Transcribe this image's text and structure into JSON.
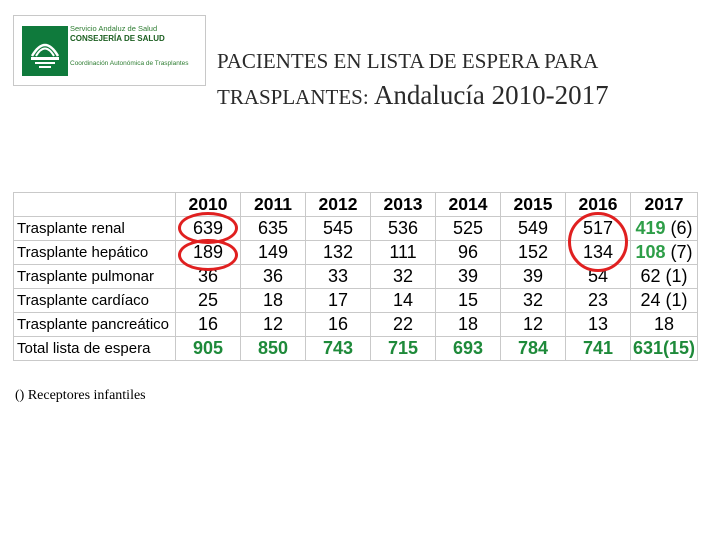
{
  "logo": {
    "line1": "Servicio Andaluz de Salud",
    "line2": "CONSEJERÍA DE SALUD",
    "line3": "Coordinación Autonómica de Trasplantes"
  },
  "title": {
    "line1": "PACIENTES EN LISTA DE ESPERA  PARA",
    "line2_small": "TRASPLANTES:",
    "line2_big": "Andalucía 2010-2017"
  },
  "table": {
    "years": [
      "2010",
      "2011",
      "2012",
      "2013",
      "2014",
      "2015",
      "2016",
      "2017"
    ],
    "rows": [
      {
        "label": "Trasplante renal",
        "values": [
          "639",
          "635",
          "545",
          "536",
          "525",
          "549",
          "517"
        ],
        "v2017": "419",
        "v2017_suffix": " (6)"
      },
      {
        "label": "Trasplante hepático",
        "values": [
          "189",
          "149",
          "132",
          "111",
          "96",
          "152",
          "134"
        ],
        "v2017": "108",
        "v2017_suffix": " (7)"
      },
      {
        "label": "Trasplante pulmonar",
        "values": [
          "36",
          "36",
          "33",
          "32",
          "39",
          "39",
          "54"
        ],
        "v2017": "62 (1)"
      },
      {
        "label": "Trasplante cardíaco",
        "values": [
          "25",
          "18",
          "17",
          "14",
          "15",
          "32",
          "23"
        ],
        "v2017": "24 (1)"
      },
      {
        "label": "Trasplante pancreático",
        "values": [
          "16",
          "12",
          "16",
          "22",
          "18",
          "12",
          "13"
        ],
        "v2017": "18"
      },
      {
        "label": "Total lista de espera",
        "values": [
          "905",
          "850",
          "743",
          "715",
          "693",
          "784",
          "741"
        ],
        "v2017": "631(15)"
      }
    ]
  },
  "highlight_color": "#e02020",
  "total_color": "#1e8a3a",
  "footnote": "() Receptores infantiles"
}
